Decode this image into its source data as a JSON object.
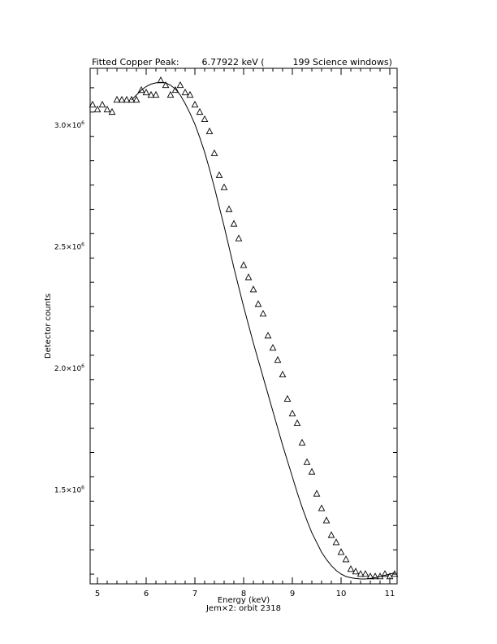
{
  "chart_data": {
    "type": "scatter",
    "title": "Fitted Copper Peak:        6.77922 keV (          199 Science windows)",
    "xlabel": "Energy (keV)",
    "xlabel2": "Jem×2: orbit 2318",
    "ylabel": "Detector counts",
    "xlim": [
      4.85,
      11.15
    ],
    "ylim": [
      1110000,
      3230000
    ],
    "grid": false,
    "x_ticks": [
      5,
      6,
      7,
      8,
      9,
      10,
      11
    ],
    "x_tick_labels": [
      "5",
      "6",
      "7",
      "8",
      "9",
      "10",
      "11"
    ],
    "y_ticks": [
      1500000,
      2000000,
      2500000,
      3000000
    ],
    "y_tick_labels": [
      {
        "mantissa": "1.5×10",
        "exp": "6"
      },
      {
        "mantissa": "2.0×10",
        "exp": "6"
      },
      {
        "mantissa": "2.5×10",
        "exp": "6"
      },
      {
        "mantissa": "3.0×10",
        "exp": "6"
      }
    ],
    "series": [
      {
        "marker": "triangle",
        "x": [
          4.9,
          5.0,
          5.1,
          5.2,
          5.3,
          5.4,
          5.5,
          5.6,
          5.7,
          5.8,
          5.9,
          6.0,
          6.1,
          6.2,
          6.3,
          6.4,
          6.5,
          6.6,
          6.7,
          6.8,
          6.9,
          7.0,
          7.1,
          7.2,
          7.3,
          7.4,
          7.5,
          7.6,
          7.7,
          7.8,
          7.9,
          8.0,
          8.1,
          8.2,
          8.3,
          8.4,
          8.5,
          8.6,
          8.7,
          8.8,
          8.9,
          9.0,
          9.1,
          9.2,
          9.3,
          9.4,
          9.5,
          9.6,
          9.7,
          9.8,
          9.9,
          10.0,
          10.1,
          10.2,
          10.3,
          10.4,
          10.5,
          10.6,
          10.7,
          10.8,
          10.9,
          11.0,
          11.1
        ],
        "y": [
          3080000,
          3060000,
          3080000,
          3060000,
          3050000,
          3100000,
          3100000,
          3100000,
          3100000,
          3100000,
          3140000,
          3130000,
          3120000,
          3120000,
          3180000,
          3160000,
          3120000,
          3140000,
          3160000,
          3130000,
          3120000,
          3080000,
          3050000,
          3020000,
          2970000,
          2880000,
          2790000,
          2740000,
          2650000,
          2590000,
          2530000,
          2420000,
          2370000,
          2320000,
          2260000,
          2220000,
          2130000,
          2080000,
          2030000,
          1970000,
          1870000,
          1810000,
          1770000,
          1690000,
          1610000,
          1570000,
          1480000,
          1420000,
          1370000,
          1310000,
          1280000,
          1240000,
          1210000,
          1170000,
          1160000,
          1150000,
          1150000,
          1140000,
          1140000,
          1140000,
          1150000,
          1140000,
          1150000
        ]
      },
      {
        "marker": "line",
        "x": [
          5.7,
          5.8,
          5.9,
          6.0,
          6.1,
          6.2,
          6.3,
          6.4,
          6.5,
          6.6,
          6.7,
          6.8,
          6.9,
          7.0,
          7.1,
          7.2,
          7.3,
          7.4,
          7.5,
          7.6,
          7.7,
          7.8,
          7.9,
          8.0,
          8.1,
          8.2,
          8.3,
          8.4,
          8.5,
          8.6,
          8.7,
          8.8,
          8.9,
          9.0,
          9.1,
          9.2,
          9.3,
          9.4,
          9.5,
          9.6,
          9.7,
          9.8,
          9.9,
          10.0,
          10.1,
          10.2,
          10.3,
          10.4,
          10.5,
          10.6,
          10.7,
          10.8,
          10.9,
          11.0,
          11.1
        ],
        "y": [
          3100000,
          3120000,
          3140000,
          3155000,
          3165000,
          3170000,
          3172000,
          3170000,
          3160000,
          3145000,
          3120000,
          3085000,
          3045000,
          3000000,
          2945000,
          2885000,
          2815000,
          2740000,
          2660000,
          2580000,
          2495000,
          2410000,
          2330000,
          2250000,
          2175000,
          2100000,
          2030000,
          1960000,
          1890000,
          1820000,
          1750000,
          1680000,
          1615000,
          1550000,
          1485000,
          1425000,
          1370000,
          1320000,
          1280000,
          1240000,
          1210000,
          1185000,
          1165000,
          1150000,
          1140000,
          1135000,
          1132000,
          1130000,
          1130000,
          1132000,
          1135000,
          1140000,
          1145000,
          1150000,
          1155000
        ]
      }
    ]
  }
}
